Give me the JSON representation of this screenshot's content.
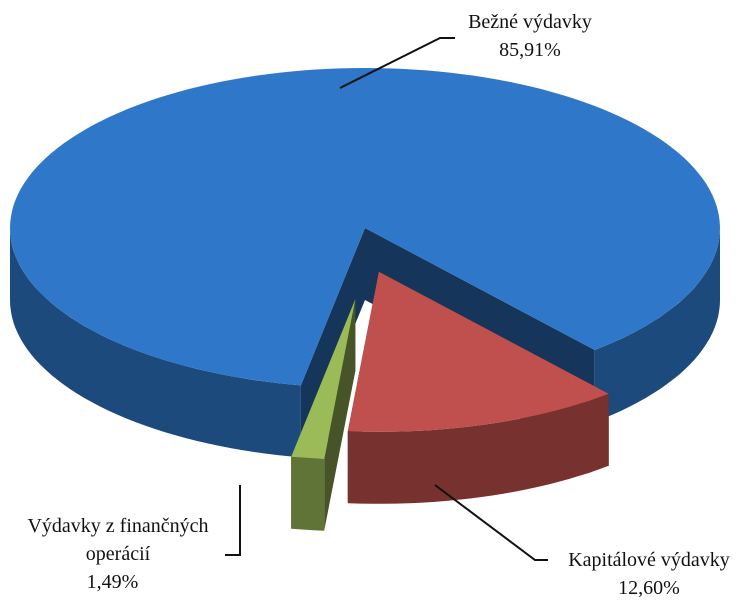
{
  "chart_data": {
    "type": "pie3d",
    "categories": [
      "Bežné výdavky",
      "Kapitálové výdavky",
      "Výdavky z finančných operácií"
    ],
    "values": [
      85.91,
      12.6,
      1.49
    ],
    "value_labels": [
      "85,91%",
      "12,60%",
      "1,49%"
    ],
    "colors": [
      "#2f78c9",
      "#c0504d",
      "#9bbb59"
    ]
  }
}
